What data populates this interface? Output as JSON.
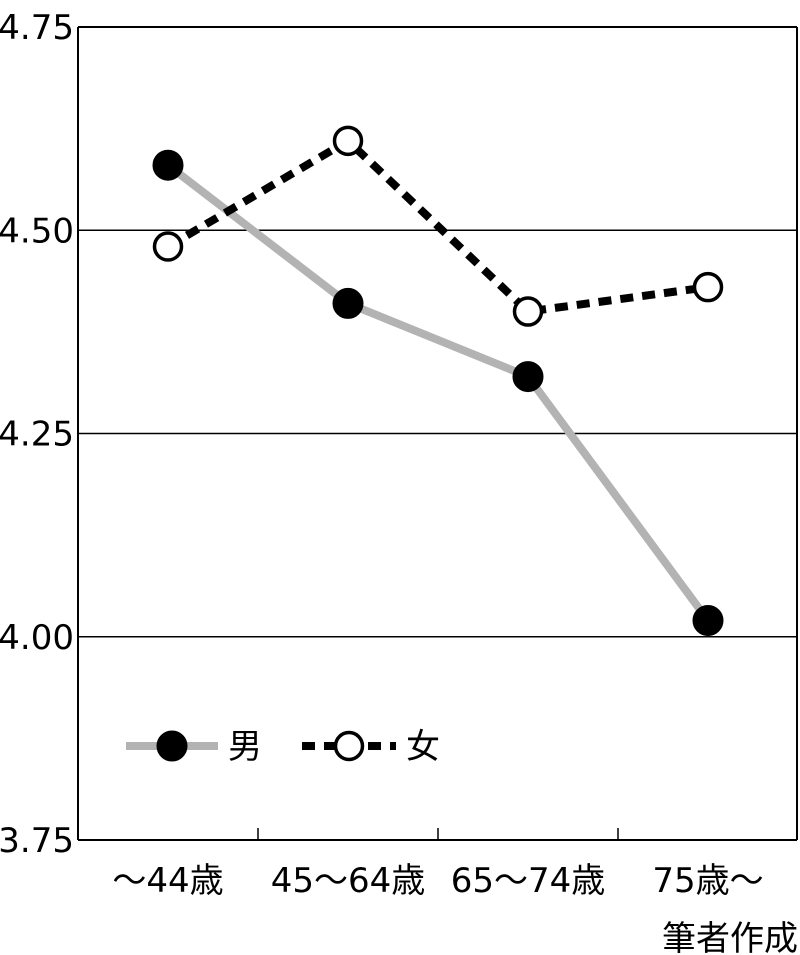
{
  "chart_data": {
    "type": "line",
    "categories": [
      "～44歳",
      "45～64歳",
      "65～74歳",
      "75歳～"
    ],
    "ylim": [
      3.75,
      4.75
    ],
    "yticks": [
      "3.75",
      "4.00",
      "4.25",
      "4.50",
      "4.75"
    ],
    "ytick_values": [
      3.75,
      4.0,
      4.25,
      4.5,
      4.75
    ],
    "grid": true,
    "legend_position": "lower-left",
    "series": [
      {
        "name": "男",
        "values": [
          4.58,
          4.41,
          4.32,
          4.02
        ],
        "line_color": "#b3b3b3",
        "line_style": "solid",
        "marker": "filled-circle",
        "marker_color": "#000000"
      },
      {
        "name": "女",
        "values": [
          4.48,
          4.61,
          4.4,
          4.43
        ],
        "line_color": "#000000",
        "line_style": "dashed",
        "marker": "open-circle",
        "marker_color": "#000000"
      }
    ]
  },
  "credit": "筆者作成"
}
